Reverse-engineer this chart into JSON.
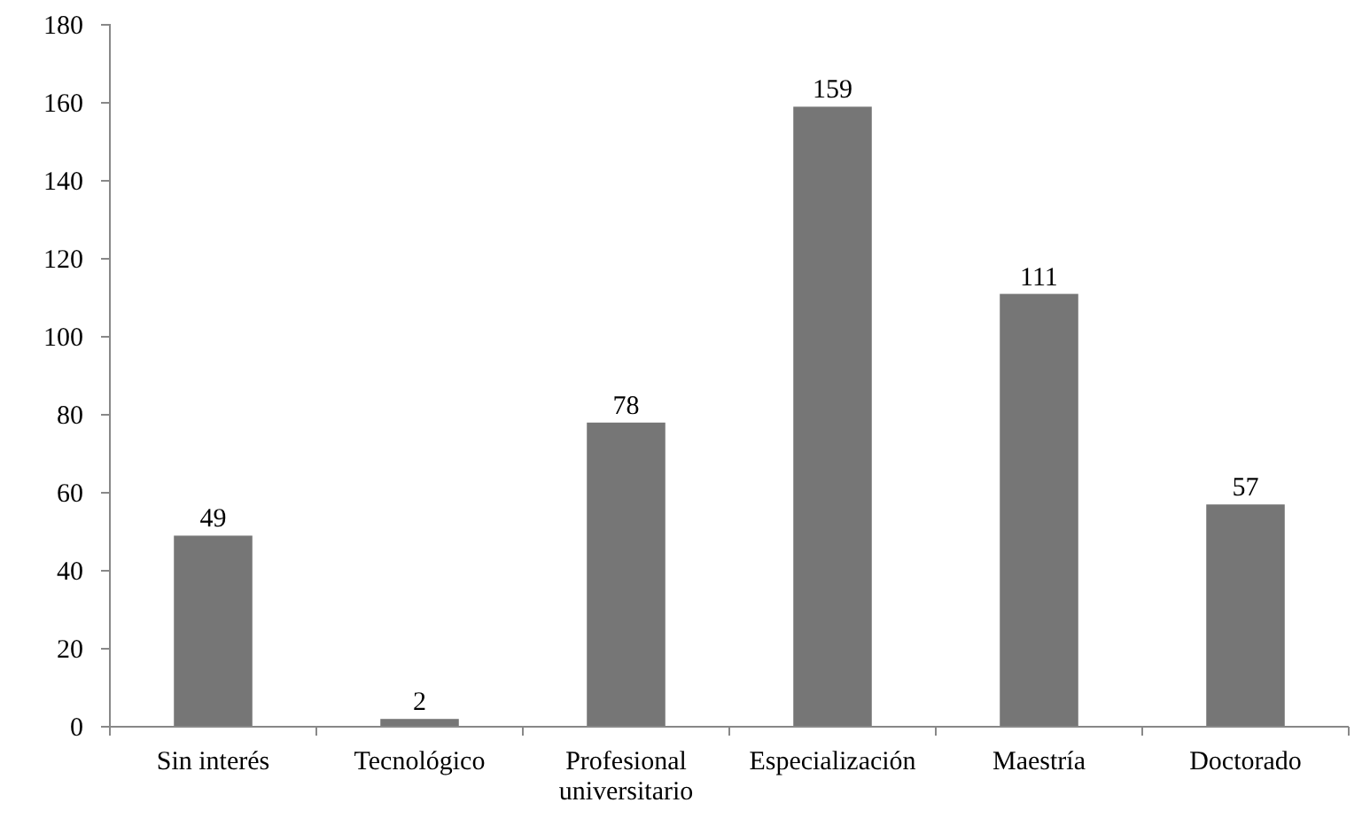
{
  "chart_data": {
    "type": "bar",
    "categories": [
      "Sin interés",
      "Tecnológico",
      "Profesional universitario",
      "Especialización",
      "Maestría",
      "Doctorado"
    ],
    "values": [
      49,
      2,
      78,
      159,
      111,
      57
    ],
    "color": "#767676",
    "ylim": [
      0,
      180
    ],
    "yticks": [
      0,
      20,
      40,
      60,
      80,
      100,
      120,
      140,
      160,
      180
    ],
    "grid": false,
    "data_labels": true
  }
}
